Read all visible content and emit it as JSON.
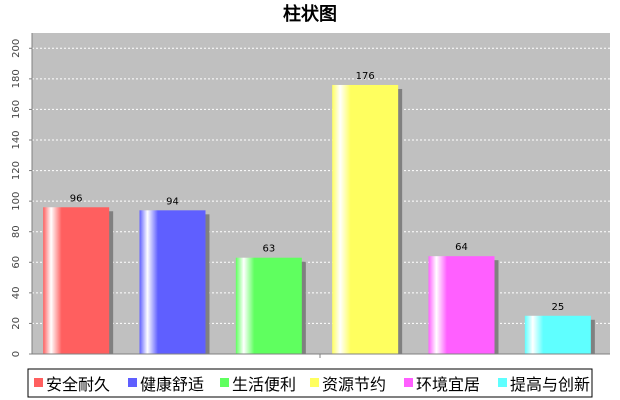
{
  "chart_data": {
    "type": "bar",
    "title": "柱状图",
    "categories": [
      "安全耐久",
      "健康舒适",
      "生活便利",
      "资源节约",
      "环境宜居",
      "提高与创新"
    ],
    "values": [
      96,
      94,
      63,
      176,
      64,
      25
    ],
    "colors": [
      "#ff5f5f",
      "#5f5fff",
      "#5fff5f",
      "#ffff5f",
      "#ff5fff",
      "#5fffff"
    ],
    "ylim": [
      0,
      210
    ],
    "yticks": [
      0,
      20,
      40,
      60,
      80,
      100,
      120,
      140,
      160,
      180,
      200
    ],
    "grid": true,
    "legend_position": "bottom",
    "plot_background": "#c0c0c0"
  }
}
